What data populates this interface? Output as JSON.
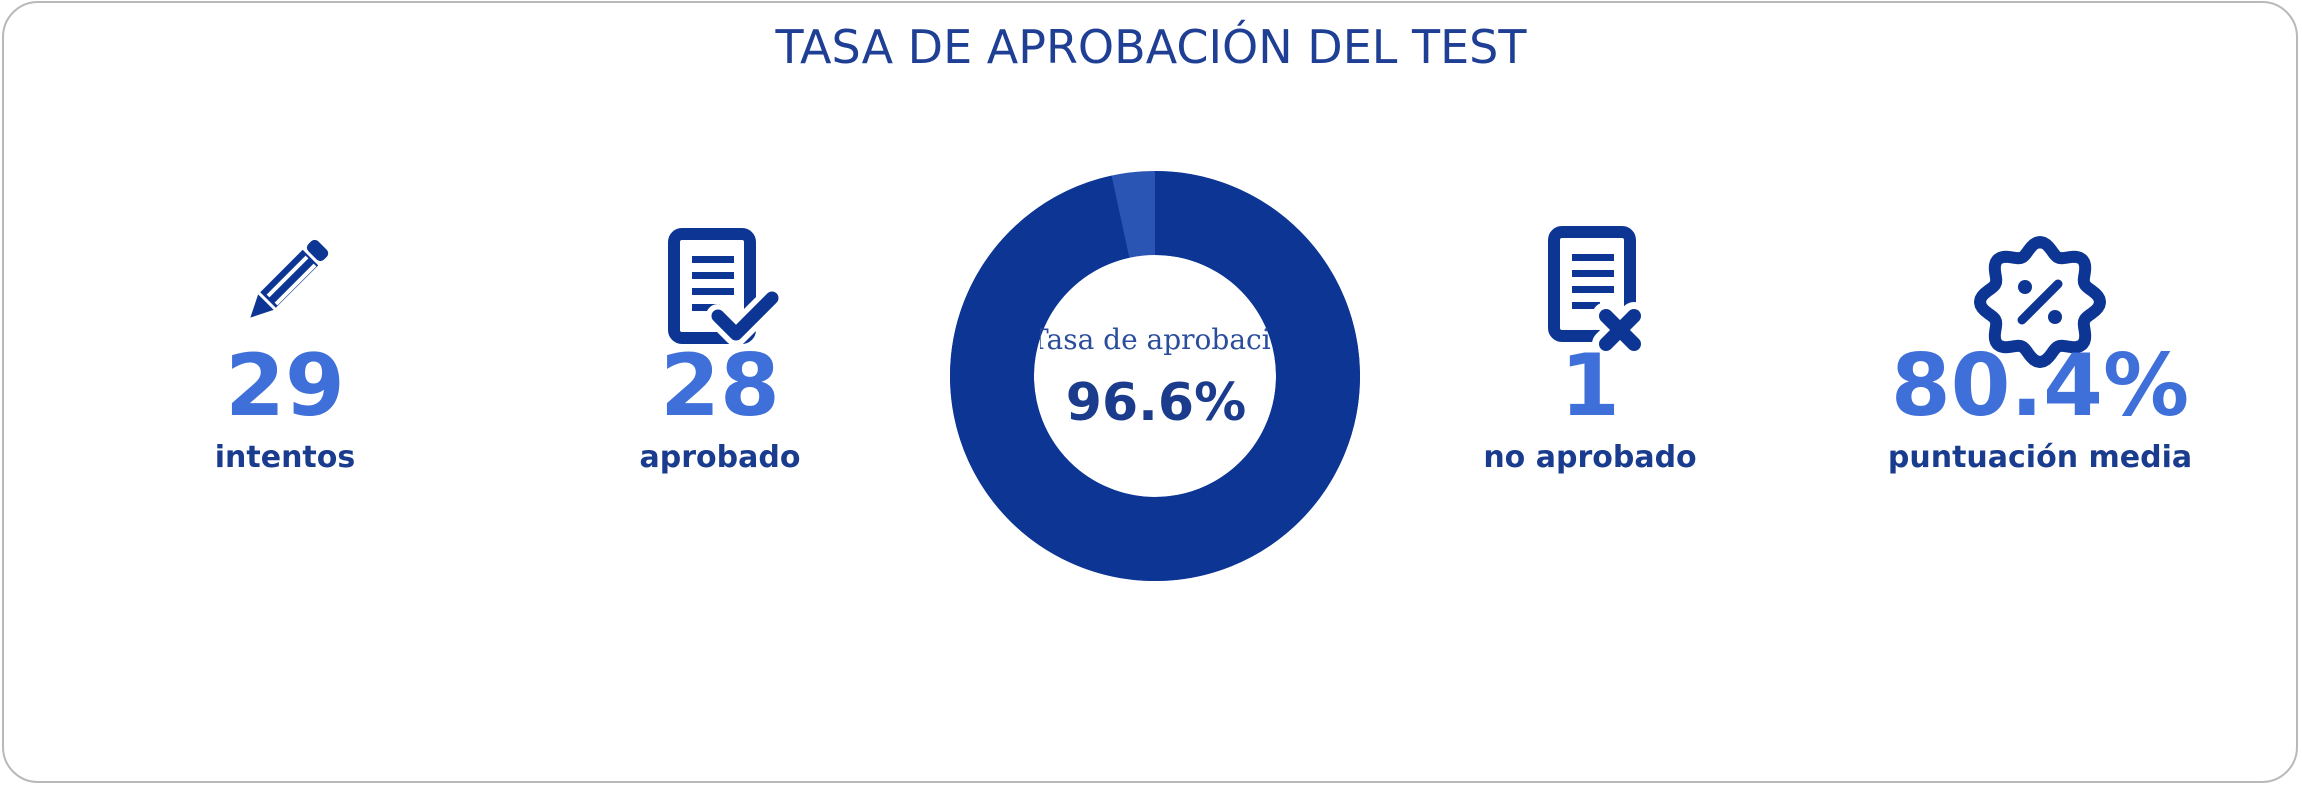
{
  "title": "TASA DE APROBACIÓN DEL TEST",
  "stats": {
    "attempts": {
      "value": "29",
      "label": "intentos",
      "icon": "pencil-icon"
    },
    "passed": {
      "value": "28",
      "label": "aprobado",
      "icon": "document-check-icon"
    },
    "failed": {
      "value": "1",
      "label": "no aprobado",
      "icon": "document-x-icon"
    },
    "average": {
      "value": "80.4%",
      "label": "puntuación media",
      "icon": "percent-badge-icon"
    }
  },
  "donut": {
    "label": "Tasa de aprobación",
    "value": "96.6%",
    "fraction": 0.966
  },
  "colors": {
    "title": "#1f3f95",
    "icon": "#0d3594",
    "value": "#3f6fd9",
    "label": "#1a3c8f",
    "donut_main": "#0c3594",
    "donut_remainder": "#2a55b5",
    "border": "#b9b9b9"
  }
}
